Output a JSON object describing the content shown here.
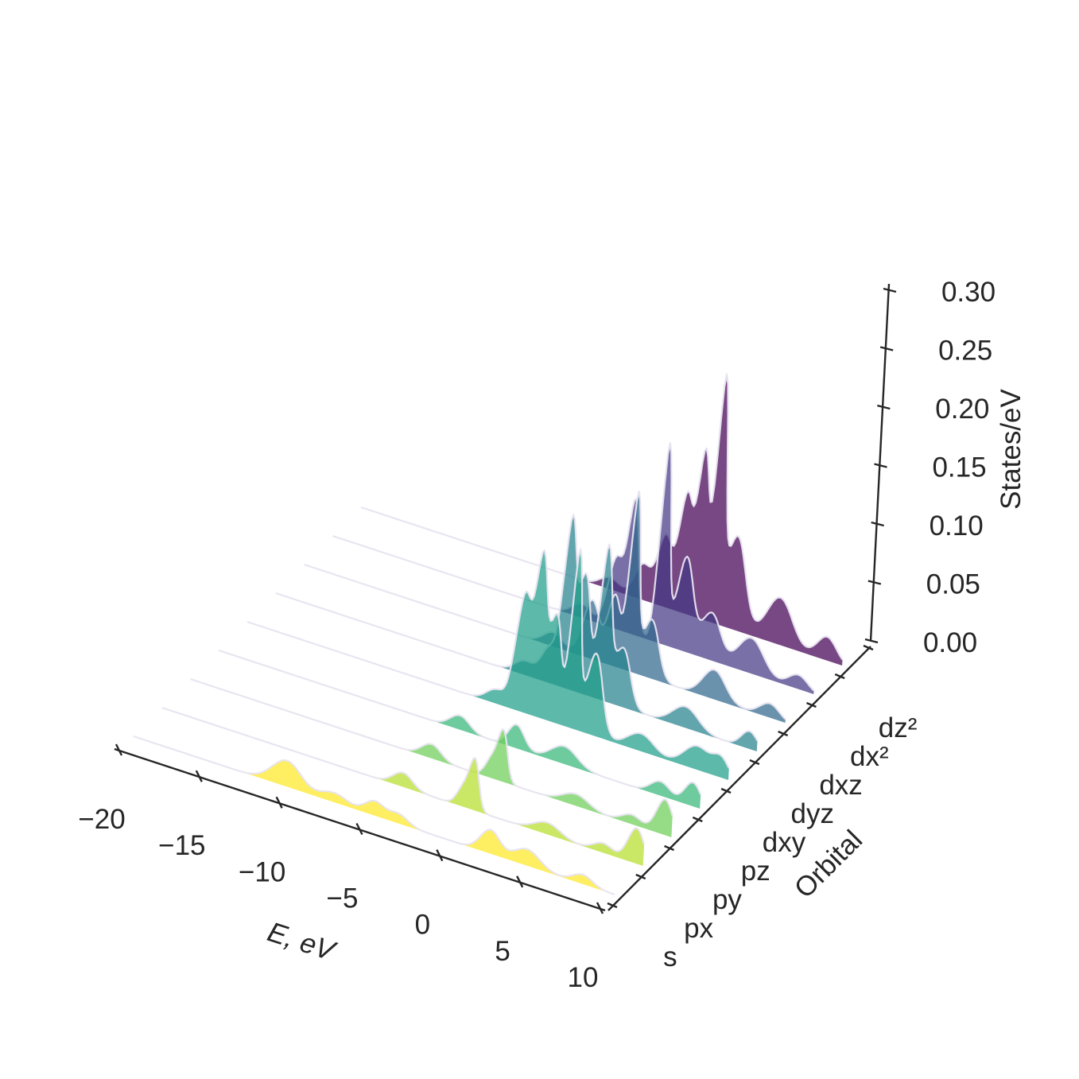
{
  "chart_data": {
    "type": "area",
    "kind": "3d-ridgeline",
    "xlabel": "E, eV",
    "ylabel": "Orbital",
    "zlabel": "States/eV",
    "x_ticks": [
      "−20",
      "−15",
      "−10",
      "−5",
      "0",
      "5",
      "10"
    ],
    "z_ticks": [
      "0.00",
      "0.05",
      "0.10",
      "0.15",
      "0.20",
      "0.25",
      "0.30"
    ],
    "orbital_labels": [
      "s",
      "px",
      "py",
      "pz",
      "dxy",
      "dyz",
      "dxz",
      "dx²",
      "dz²"
    ],
    "xlim": [
      -20,
      10
    ],
    "zlim": [
      0,
      0.3
    ],
    "colormap": "viridis",
    "series": [
      {
        "name": "s",
        "color": "#fde725",
        "peaks": [
          [
            -10.5,
            0.022,
            0.9
          ],
          [
            -7.5,
            0.008,
            0.8
          ],
          [
            -5.0,
            0.012,
            0.6
          ],
          [
            -3.5,
            0.008,
            0.6
          ],
          [
            2.2,
            0.02,
            0.6
          ],
          [
            4.5,
            0.014,
            0.8
          ],
          [
            8.0,
            0.008,
            0.6
          ]
        ]
      },
      {
        "name": "px",
        "color": "#b5de2b",
        "peaks": [
          [
            -5.0,
            0.012,
            0.6
          ],
          [
            -1.2,
            0.018,
            0.4
          ],
          [
            -0.6,
            0.038,
            0.3
          ],
          [
            4.0,
            0.01,
            0.8
          ],
          [
            7.5,
            0.008,
            0.6
          ],
          [
            9.5,
            0.03,
            0.5
          ]
        ]
      },
      {
        "name": "py",
        "color": "#6ece58",
        "peaks": [
          [
            -5.0,
            0.012,
            0.6
          ],
          [
            -1.2,
            0.018,
            0.4
          ],
          [
            -0.6,
            0.038,
            0.3
          ],
          [
            4.0,
            0.01,
            0.8
          ],
          [
            7.5,
            0.008,
            0.6
          ],
          [
            9.5,
            0.03,
            0.5
          ]
        ]
      },
      {
        "name": "pz",
        "color": "#35b779",
        "peaks": [
          [
            -5.0,
            0.012,
            0.6
          ],
          [
            -1.5,
            0.02,
            0.5
          ],
          [
            1.5,
            0.015,
            0.8
          ],
          [
            7.5,
            0.012,
            0.6
          ],
          [
            9.5,
            0.02,
            0.5
          ]
        ]
      },
      {
        "name": "dxy",
        "color": "#1f9e89",
        "peaks": [
          [
            -4.5,
            0.012,
            0.6
          ],
          [
            -3.0,
            0.1,
            0.45
          ],
          [
            -2.0,
            0.13,
            0.35
          ],
          [
            -1.0,
            0.09,
            0.4
          ],
          [
            0.2,
            0.15,
            0.3
          ],
          [
            1.5,
            0.07,
            0.5
          ],
          [
            4.5,
            0.015,
            0.8
          ],
          [
            8.0,
            0.02,
            0.8
          ],
          [
            9.5,
            0.015,
            0.5
          ]
        ]
      },
      {
        "name": "dyz",
        "color": "#26828e",
        "peaks": [
          [
            -4.5,
            0.012,
            0.6
          ],
          [
            -3.0,
            0.03,
            0.5
          ],
          [
            -2.0,
            0.14,
            0.35
          ],
          [
            -1.0,
            0.1,
            0.4
          ],
          [
            0.3,
            0.13,
            0.35
          ],
          [
            1.5,
            0.05,
            0.5
          ],
          [
            5.5,
            0.018,
            0.8
          ],
          [
            9.5,
            0.015,
            0.5
          ]
        ]
      },
      {
        "name": "dxz",
        "color": "#31688e",
        "peaks": [
          [
            -4.5,
            0.012,
            0.6
          ],
          [
            -2.2,
            0.05,
            0.5
          ],
          [
            -0.8,
            0.06,
            0.4
          ],
          [
            0.3,
            0.15,
            0.3
          ],
          [
            1.5,
            0.05,
            0.5
          ],
          [
            5.5,
            0.025,
            0.7
          ],
          [
            9.0,
            0.012,
            0.6
          ]
        ]
      },
      {
        "name": "dx²",
        "color": "#443983",
        "peaks": [
          [
            -4.5,
            0.012,
            0.6
          ],
          [
            -2.5,
            0.06,
            0.45
          ],
          [
            -1.5,
            0.11,
            0.35
          ],
          [
            0.4,
            0.17,
            0.3
          ],
          [
            1.8,
            0.08,
            0.5
          ],
          [
            3.5,
            0.04,
            0.6
          ],
          [
            6.0,
            0.03,
            0.8
          ],
          [
            9.0,
            0.012,
            0.6
          ]
        ]
      },
      {
        "name": "dz²",
        "color": "#440154",
        "peaks": [
          [
            -4.5,
            0.01,
            0.6
          ],
          [
            -2.5,
            0.03,
            0.5
          ],
          [
            -1.2,
            0.06,
            0.45
          ],
          [
            0.0,
            0.1,
            0.4
          ],
          [
            1.0,
            0.14,
            0.35
          ],
          [
            2.0,
            0.2,
            0.3
          ],
          [
            3.2,
            0.08,
            0.6
          ],
          [
            6.0,
            0.04,
            0.8
          ],
          [
            9.0,
            0.02,
            0.6
          ]
        ]
      }
    ]
  }
}
